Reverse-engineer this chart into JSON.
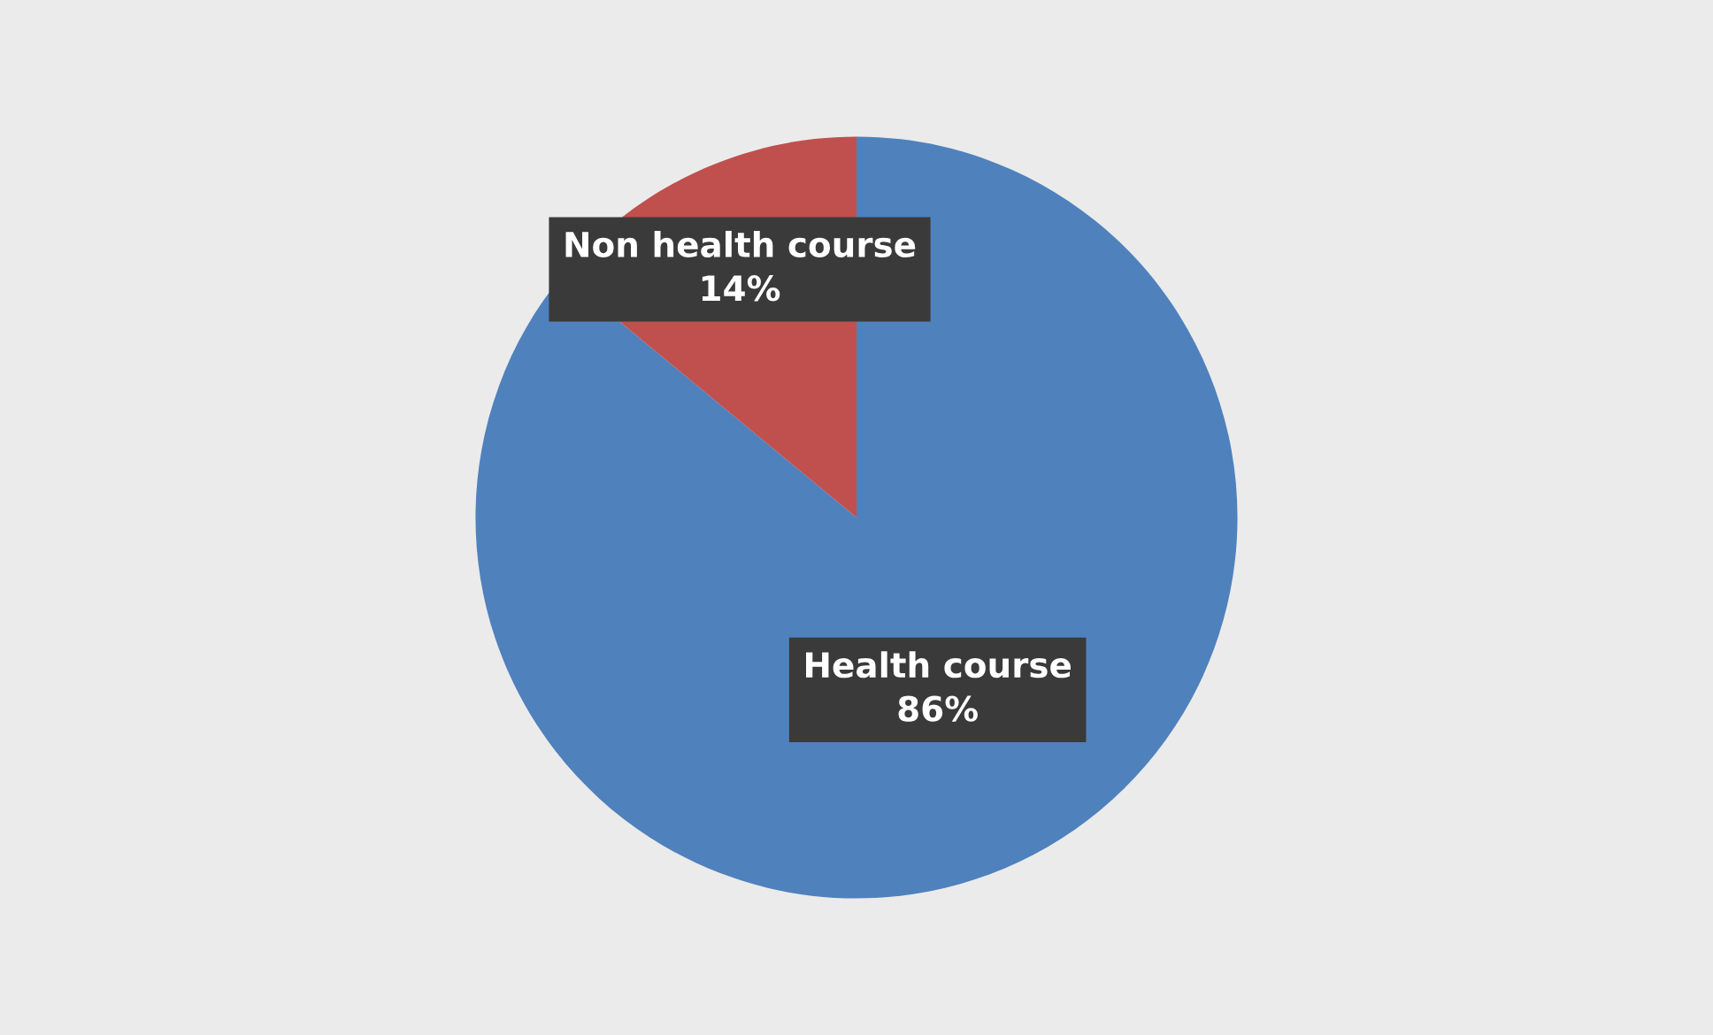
{
  "chart_data": {
    "type": "pie",
    "categories": [
      "Health course",
      "Non health course"
    ],
    "values": [
      86,
      14
    ],
    "colors": [
      "#4f81bd",
      "#c0504d"
    ],
    "value_labels": [
      "86%",
      "14%"
    ],
    "legend": false
  }
}
